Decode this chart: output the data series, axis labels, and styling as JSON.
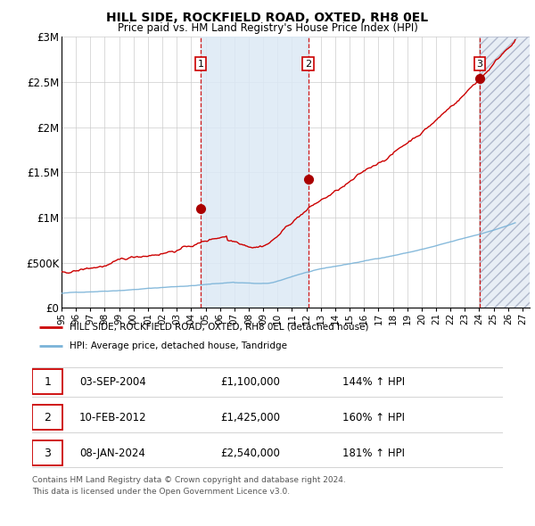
{
  "title": "HILL SIDE, ROCKFIELD ROAD, OXTED, RH8 0EL",
  "subtitle": "Price paid vs. HM Land Registry's House Price Index (HPI)",
  "hpi_label": "HPI: Average price, detached house, Tandridge",
  "property_label": "HILL SIDE, ROCKFIELD ROAD, OXTED, RH8 0EL (detached house)",
  "footer1": "Contains HM Land Registry data © Crown copyright and database right 2024.",
  "footer2": "This data is licensed under the Open Government Licence v3.0.",
  "sales": [
    {
      "num": 1,
      "date": "03-SEP-2004",
      "price": 1100000,
      "pct": "144%",
      "year": 2004.67
    },
    {
      "num": 2,
      "date": "10-FEB-2012",
      "price": 1425000,
      "pct": "160%",
      "year": 2012.12
    },
    {
      "num": 3,
      "date": "08-JAN-2024",
      "price": 2540000,
      "pct": "181%",
      "year": 2024.04
    }
  ],
  "hpi_color": "#7ab3d8",
  "price_color": "#cc0000",
  "sale_marker_color": "#aa0000",
  "vline_color": "#cc0000",
  "shade_color": "#dce9f5",
  "x_start": 1995.0,
  "x_end": 2027.5,
  "y_max": 3000000,
  "yticks": [
    0,
    500000,
    1000000,
    1500000,
    2000000,
    2500000,
    3000000
  ],
  "ytick_labels": [
    "£0",
    "£500K",
    "£1M",
    "£1.5M",
    "£2M",
    "£2.5M",
    "£3M"
  ],
  "xtick_years": [
    1995,
    1996,
    1997,
    1998,
    1999,
    2000,
    2001,
    2002,
    2003,
    2004,
    2005,
    2006,
    2007,
    2008,
    2009,
    2010,
    2011,
    2012,
    2013,
    2014,
    2015,
    2016,
    2017,
    2018,
    2019,
    2020,
    2021,
    2022,
    2023,
    2024,
    2025,
    2026,
    2027
  ]
}
